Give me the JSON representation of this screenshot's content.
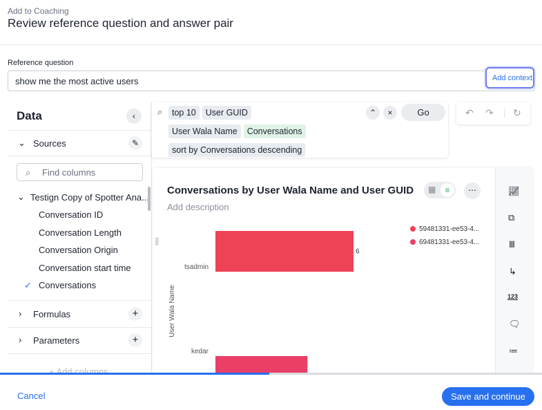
{
  "header": {
    "breadcrumb": "Add to Coaching",
    "title": "Review reference question and answer pair"
  },
  "reference": {
    "label": "Reference question",
    "question": "show me the most active users",
    "button": "Add context"
  },
  "data_panel": {
    "title": "Data",
    "sources": "Sources",
    "search_placeholder": "Find columns",
    "source_name": "Testign Copy of Spotter Ana...",
    "columns": [
      "Conversation ID",
      "Conversation Length",
      "Conversation Origin",
      "Conversation start time",
      "Conversations"
    ],
    "formulas": "Formulas",
    "parameters": "Parameters",
    "add_columns": "Add columns"
  },
  "search": {
    "tokens": [
      {
        "text": "top 10",
        "color": "#e8ebf0"
      },
      {
        "text": "User GUID",
        "color": "#e8ebf0"
      },
      {
        "text": "User Wala Name",
        "color": "#e8ebf0"
      },
      {
        "text": "Conversations",
        "color": "#dff3e6"
      },
      {
        "text": "sort by Conversations descending",
        "color": "#e8ebf0"
      }
    ],
    "go": "Go"
  },
  "chart": {
    "type": "bar",
    "title": "Conversations by User Wala Name and User GUID",
    "description": "Add description",
    "y_axis_label": "User Wala Name",
    "categories": [
      "tsadmin",
      "kedar"
    ],
    "series": [
      {
        "name": "59481331-ee53-4...",
        "color": "#ee4257",
        "values": [
          6,
          null
        ]
      },
      {
        "name": "69481331-ee53-4...",
        "color": "#ea3f66",
        "values": [
          null,
          4
        ]
      }
    ]
  },
  "footer": {
    "cancel": "Cancel",
    "save": "Save and continue"
  }
}
